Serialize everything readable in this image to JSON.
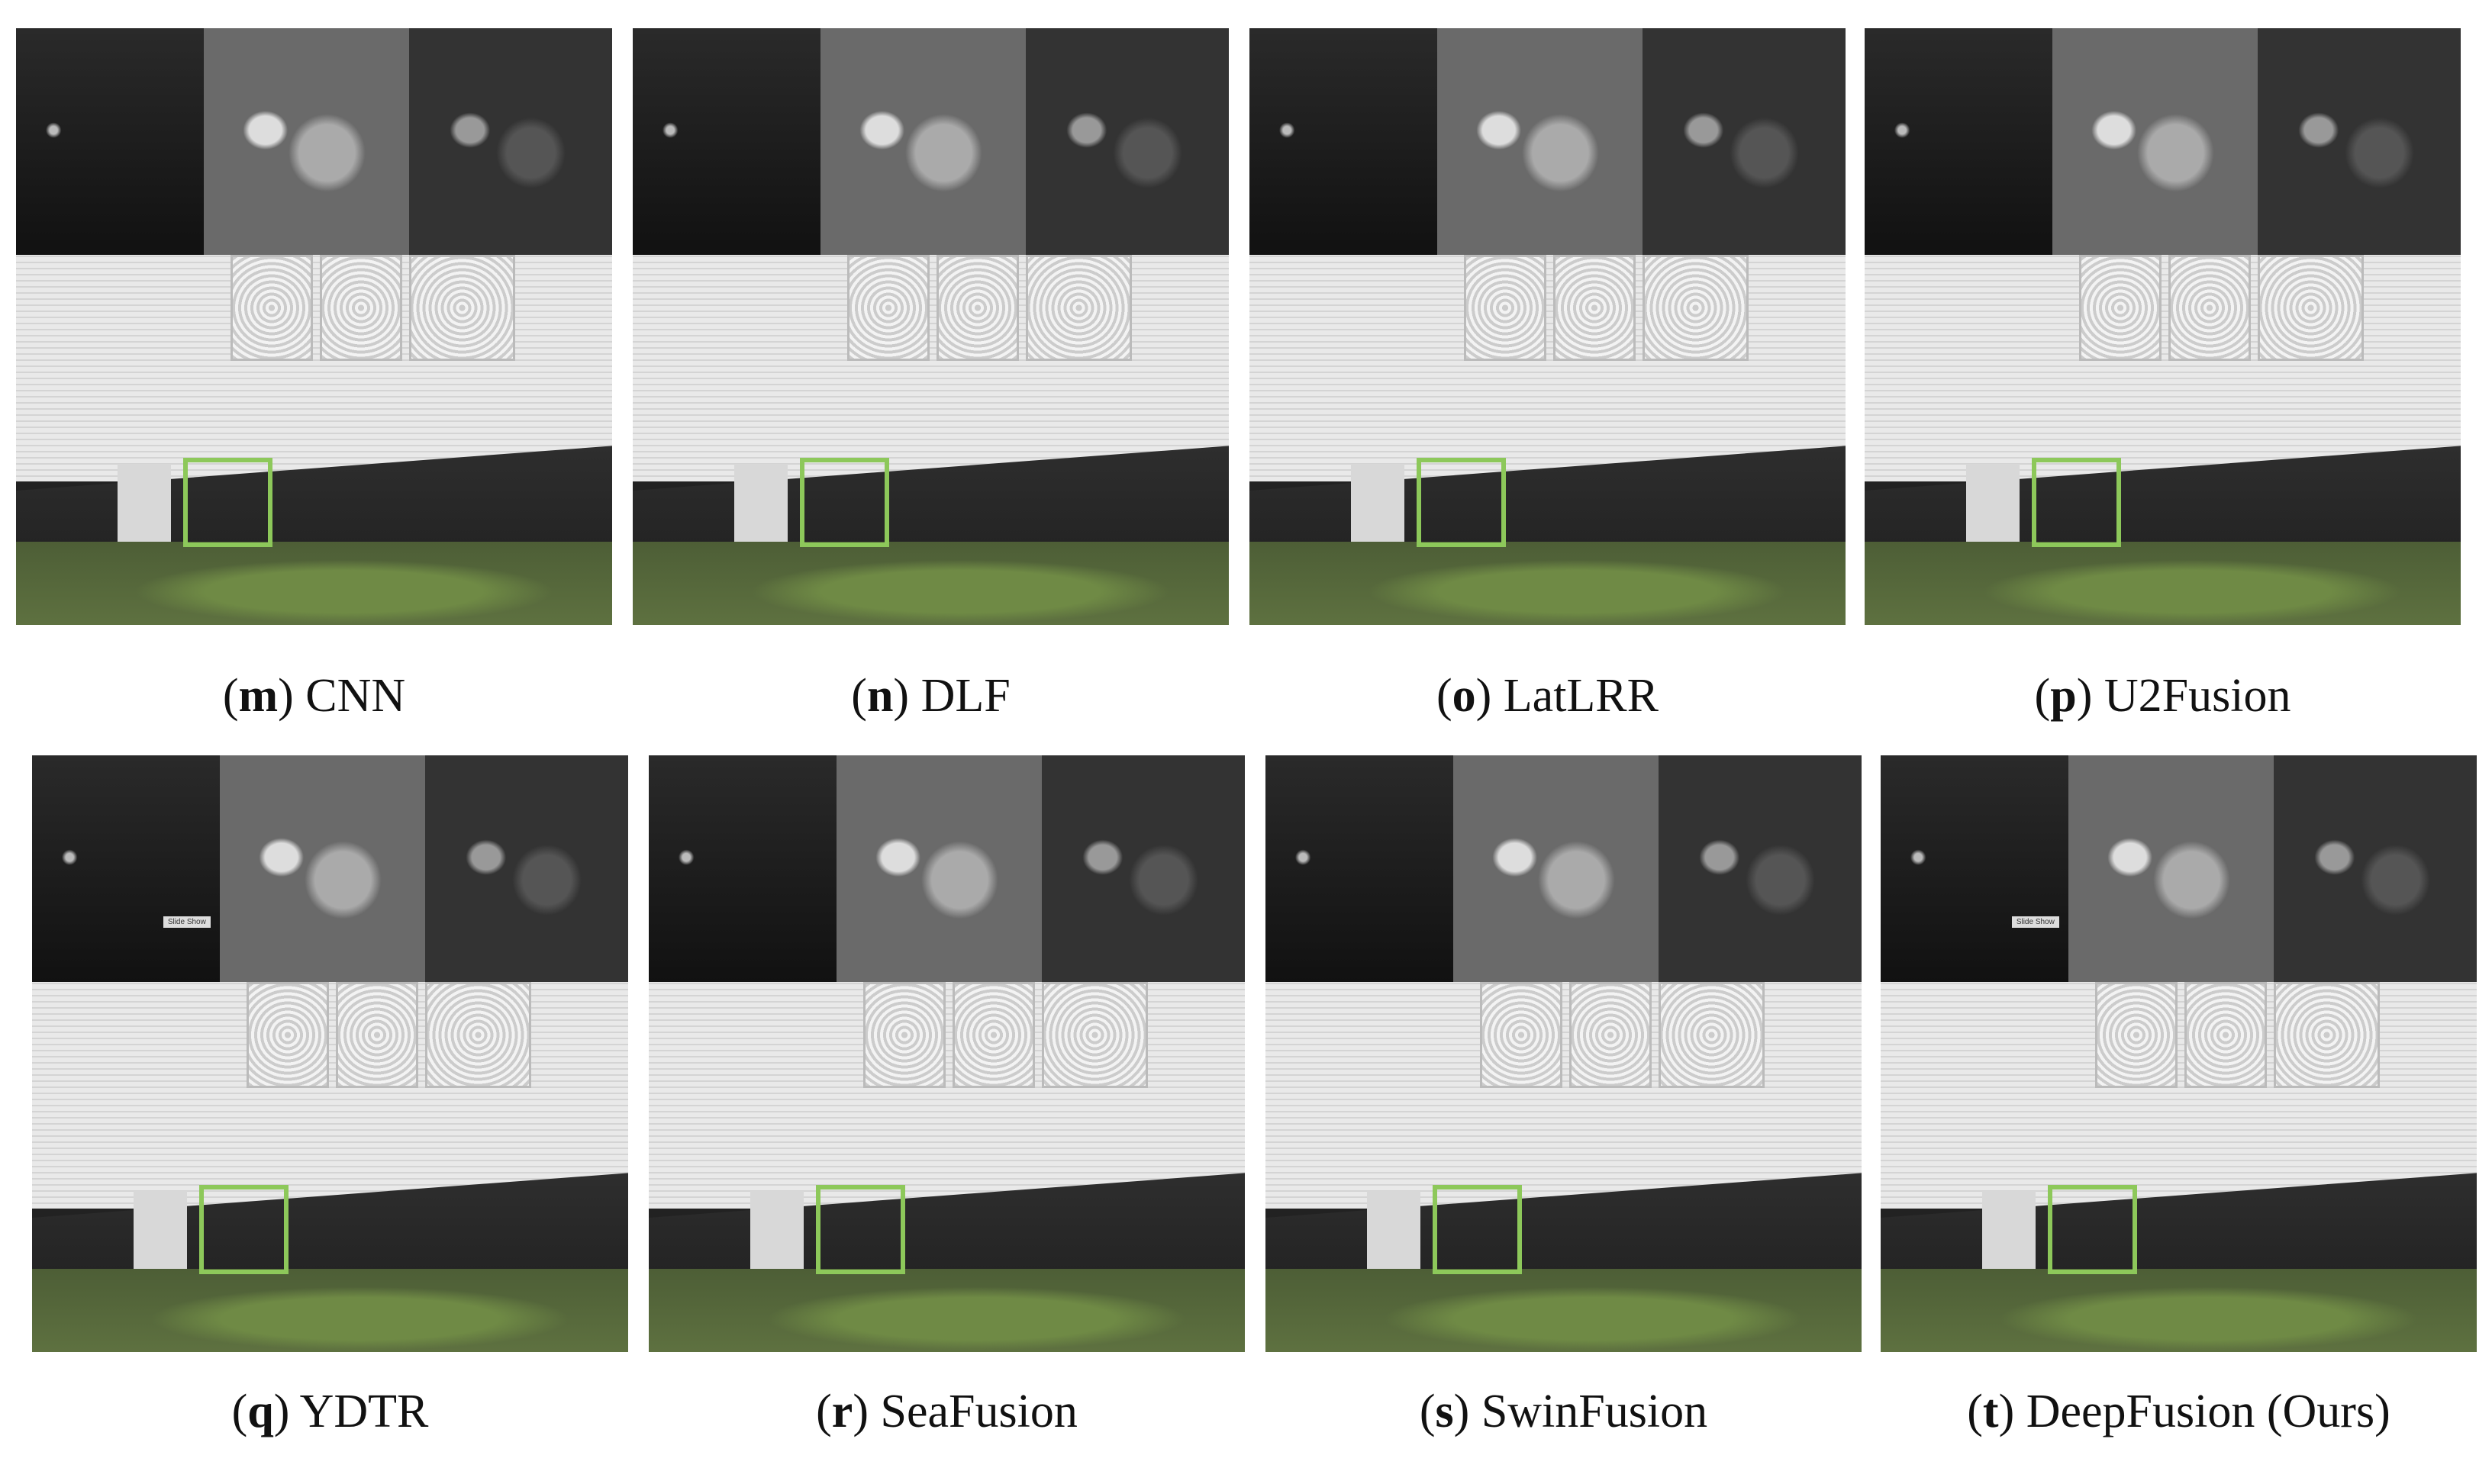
{
  "figure": {
    "bracket_open": "(",
    "bracket_close": ")",
    "panels": [
      {
        "letter": "m",
        "method": "CNN"
      },
      {
        "letter": "n",
        "method": "DLF"
      },
      {
        "letter": "o",
        "method": "LatLRR"
      },
      {
        "letter": "p",
        "method": "U2Fusion"
      },
      {
        "letter": "q",
        "method": "YDTR",
        "overlay": "Slide Show"
      },
      {
        "letter": "r",
        "method": "SeaFusion"
      },
      {
        "letter": "s",
        "method": "SwinFusion"
      },
      {
        "letter": "t",
        "method": "DeepFusion (Ours)",
        "overlay": "Slide Show"
      }
    ]
  }
}
